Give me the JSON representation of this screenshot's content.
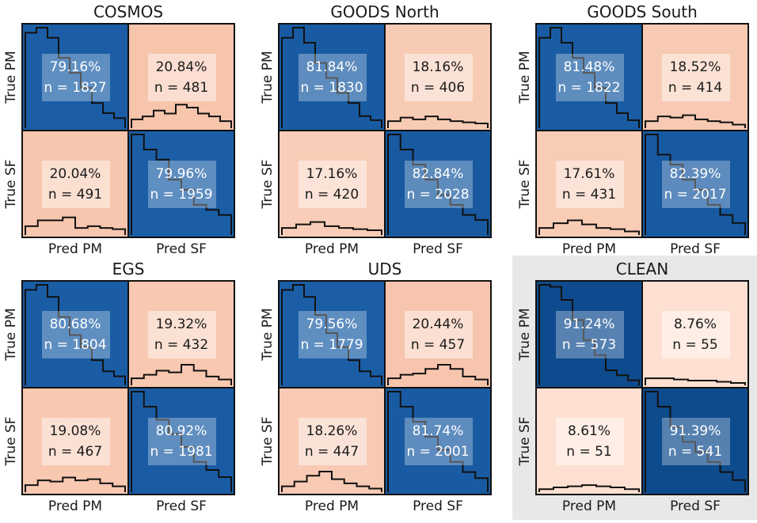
{
  "chart_data": {
    "type": "heatmap",
    "colors": {
      "high": "#1b5ea6",
      "high_dark": "#0d4a8c",
      "low": "#f7c4ab",
      "low_light": "#fde0d1",
      "highlight_box": "#e8e8e8",
      "box_overlay": "#ffffff"
    },
    "panels": [
      {
        "title": "COSMOS",
        "ylabels": [
          "True PM",
          "True SF"
        ],
        "xlabels": [
          "Pred PM",
          "Pred SF"
        ],
        "highlighted": false,
        "cells": [
          {
            "pct": "79.16%",
            "n": "n = 1827",
            "value": 79.16,
            "hist": [
              0.95,
              1.0,
              0.9,
              0.7,
              0.55,
              0.4,
              0.25,
              0.15,
              0.1
            ]
          },
          {
            "pct": "20.84%",
            "n": "n = 481",
            "value": 20.84,
            "hist": [
              0.15,
              0.2,
              0.3,
              0.25,
              0.4,
              0.35,
              0.25,
              0.2,
              0.12
            ]
          },
          {
            "pct": "20.04%",
            "n": "n = 491",
            "value": 20.04,
            "hist": [
              0.15,
              0.25,
              0.25,
              0.3,
              0.12,
              0.15,
              0.12,
              0.1
            ]
          },
          {
            "pct": "79.96%",
            "n": "n = 1959",
            "value": 79.96,
            "hist": [
              1.0,
              0.85,
              0.75,
              0.55,
              0.45,
              0.3,
              0.25,
              0.2
            ]
          }
        ]
      },
      {
        "title": "GOODS North",
        "ylabels": [
          "True PM",
          "True SF"
        ],
        "xlabels": [
          "Pred PM",
          "Pred SF"
        ],
        "highlighted": false,
        "cells": [
          {
            "pct": "81.84%",
            "n": "n = 1830",
            "value": 81.84,
            "hist": [
              0.9,
              1.0,
              0.85,
              0.65,
              0.5,
              0.35,
              0.25,
              0.12,
              0.08
            ]
          },
          {
            "pct": "18.16%",
            "n": "n = 406",
            "value": 18.16,
            "hist": [
              0.12,
              0.18,
              0.15,
              0.2,
              0.15,
              0.12,
              0.1,
              0.08
            ]
          },
          {
            "pct": "17.16%",
            "n": "n = 420",
            "value": 17.16,
            "hist": [
              0.12,
              0.18,
              0.22,
              0.15,
              0.12,
              0.1,
              0.08
            ]
          },
          {
            "pct": "82.84%",
            "n": "n = 2028",
            "value": 82.84,
            "hist": [
              1.0,
              0.85,
              0.7,
              0.55,
              0.4,
              0.3,
              0.2,
              0.15
            ]
          }
        ]
      },
      {
        "title": "GOODS South",
        "ylabels": [
          "True PM",
          "True SF"
        ],
        "xlabels": [
          "Pred PM",
          "Pred SF"
        ],
        "highlighted": false,
        "cells": [
          {
            "pct": "81.48%",
            "n": "n = 1822",
            "value": 81.48,
            "hist": [
              0.9,
              1.0,
              0.85,
              0.7,
              0.55,
              0.4,
              0.25,
              0.15,
              0.08
            ]
          },
          {
            "pct": "18.52%",
            "n": "n = 414",
            "value": 18.52,
            "hist": [
              0.12,
              0.2,
              0.18,
              0.22,
              0.15,
              0.12,
              0.1,
              0.06
            ]
          },
          {
            "pct": "17.61%",
            "n": "n = 431",
            "value": 17.61,
            "hist": [
              0.12,
              0.2,
              0.25,
              0.18,
              0.12,
              0.1,
              0.06
            ]
          },
          {
            "pct": "82.39%",
            "n": "n = 2017",
            "value": 82.39,
            "hist": [
              1.0,
              0.8,
              0.7,
              0.55,
              0.45,
              0.3,
              0.2,
              0.12
            ]
          }
        ]
      },
      {
        "title": "EGS",
        "ylabels": [
          "True PM",
          "True SF"
        ],
        "xlabels": [
          "Pred PM",
          "Pred SF"
        ],
        "highlighted": false,
        "cells": [
          {
            "pct": "80.68%",
            "n": "n = 1804",
            "value": 80.68,
            "hist": [
              0.95,
              1.0,
              0.88,
              0.68,
              0.5,
              0.38,
              0.25,
              0.14,
              0.09
            ]
          },
          {
            "pct": "19.32%",
            "n": "n = 432",
            "value": 19.32,
            "hist": [
              0.12,
              0.18,
              0.25,
              0.22,
              0.35,
              0.25,
              0.15,
              0.1
            ]
          },
          {
            "pct": "19.08%",
            "n": "n = 467",
            "value": 19.08,
            "hist": [
              0.12,
              0.2,
              0.18,
              0.25,
              0.2,
              0.22,
              0.15,
              0.1
            ]
          },
          {
            "pct": "80.92%",
            "n": "n = 1981",
            "value": 80.92,
            "hist": [
              1.0,
              0.85,
              0.72,
              0.58,
              0.45,
              0.3,
              0.22,
              0.15
            ]
          }
        ]
      },
      {
        "title": "UDS",
        "ylabels": [
          "True PM",
          "True SF"
        ],
        "xlabels": [
          "Pred PM",
          "Pred SF"
        ],
        "highlighted": false,
        "cells": [
          {
            "pct": "79.56%",
            "n": "n = 1779",
            "value": 79.56,
            "hist": [
              0.95,
              1.0,
              0.88,
              0.7,
              0.52,
              0.38,
              0.25,
              0.14,
              0.09
            ]
          },
          {
            "pct": "20.44%",
            "n": "n = 457",
            "value": 20.44,
            "hist": [
              0.12,
              0.18,
              0.2,
              0.28,
              0.35,
              0.28,
              0.15,
              0.1
            ]
          },
          {
            "pct": "18.26%",
            "n": "n = 447",
            "value": 18.26,
            "hist": [
              0.1,
              0.18,
              0.28,
              0.35,
              0.22,
              0.15,
              0.1,
              0.06
            ]
          },
          {
            "pct": "81.74%",
            "n": "n = 2001",
            "value": 81.74,
            "hist": [
              1.0,
              0.85,
              0.7,
              0.55,
              0.42,
              0.3,
              0.2,
              0.14
            ]
          }
        ]
      },
      {
        "title": "CLEAN",
        "ylabels": [
          "True PM",
          "True SF"
        ],
        "xlabels": [
          "Pred PM",
          "Pred SF"
        ],
        "highlighted": true,
        "cells": [
          {
            "pct": "91.24%",
            "n": "n = 573",
            "value": 91.24,
            "hist": [
              1.0,
              0.98,
              0.85,
              0.65,
              0.45,
              0.3,
              0.15,
              0.1,
              0.05
            ]
          },
          {
            "pct": "8.76%",
            "n": "n = 55",
            "value": 8.76,
            "hist": [
              0.12,
              0.12,
              0.1,
              0.08,
              0.08,
              0.06,
              0.04
            ]
          },
          {
            "pct": "8.61%",
            "n": "n = 51",
            "value": 8.61,
            "hist": [
              0.05,
              0.08,
              0.1,
              0.12,
              0.1,
              0.08,
              0.05
            ]
          },
          {
            "pct": "91.39%",
            "n": "n = 541",
            "value": 91.39,
            "hist": [
              1.0,
              0.85,
              0.65,
              0.5,
              0.4,
              0.3,
              0.2,
              0.12
            ]
          }
        ]
      }
    ]
  }
}
